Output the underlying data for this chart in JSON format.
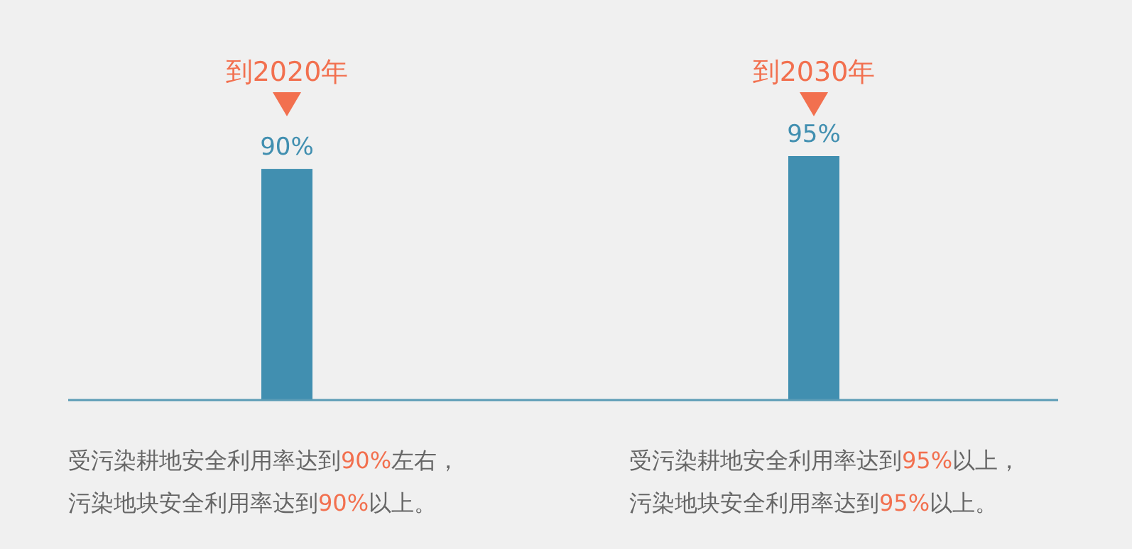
{
  "chart_data": {
    "type": "bar",
    "categories": [
      "到2020年",
      "到2030年"
    ],
    "values": [
      90,
      95
    ],
    "color": "#418fb0",
    "value_labels": [
      "90%",
      "95%"
    ],
    "annotations": [
      "受污染耕地安全利用率达到**90%**左右，",
      "污染地块安全利用率达到**90%**以上。",
      "受污染耕地安全利用率达到**95%**以上，",
      "污染地块安全利用率达到**95%**以上。"
    ]
  }
}
